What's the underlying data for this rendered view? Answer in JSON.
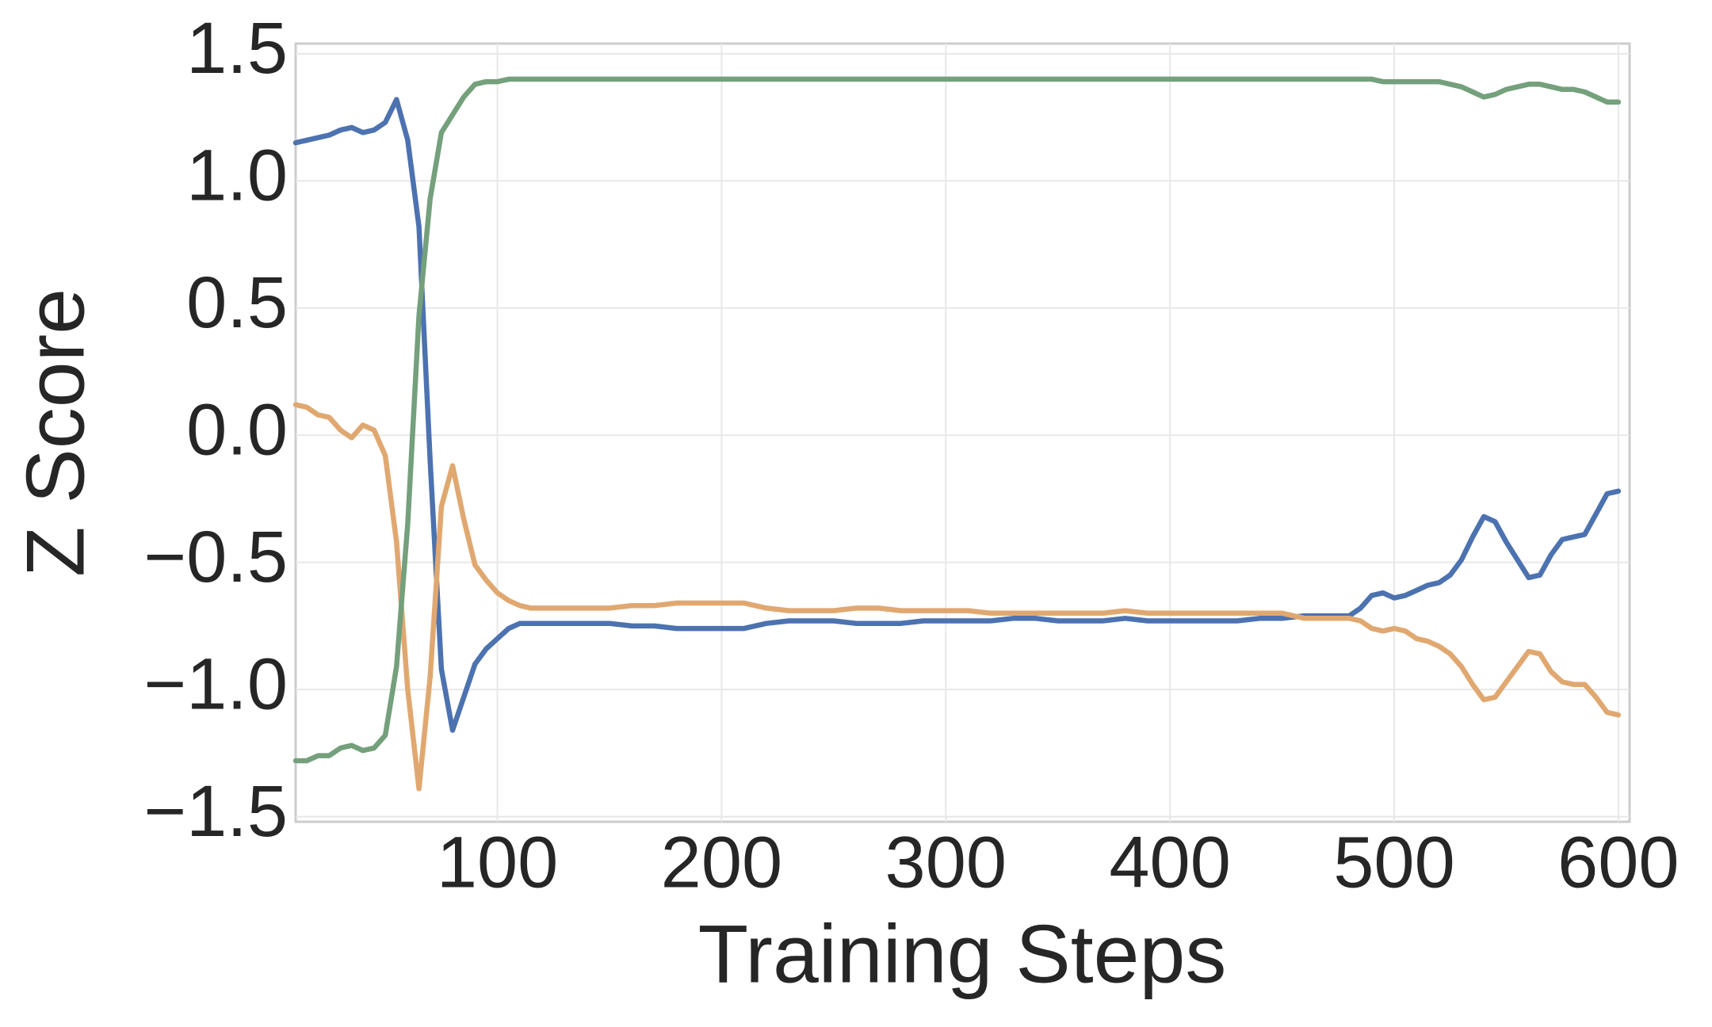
{
  "chart_data": {
    "type": "line",
    "xlabel": "Training Steps",
    "ylabel": "Z Score",
    "x": [
      10,
      15,
      20,
      25,
      30,
      35,
      40,
      45,
      50,
      55,
      60,
      65,
      70,
      75,
      80,
      85,
      90,
      95,
      100,
      105,
      110,
      115,
      120,
      130,
      140,
      150,
      160,
      170,
      180,
      190,
      200,
      210,
      220,
      230,
      240,
      250,
      260,
      270,
      280,
      290,
      300,
      310,
      320,
      330,
      340,
      350,
      360,
      370,
      380,
      390,
      400,
      410,
      420,
      430,
      440,
      450,
      460,
      470,
      480,
      485,
      490,
      495,
      500,
      505,
      510,
      515,
      520,
      525,
      530,
      535,
      540,
      545,
      550,
      555,
      560,
      565,
      570,
      575,
      580,
      585,
      590,
      595,
      600
    ],
    "series": [
      {
        "color": "#4c72b0",
        "values": [
          1.15,
          1.16,
          1.17,
          1.18,
          1.2,
          1.21,
          1.19,
          1.2,
          1.23,
          1.32,
          1.16,
          0.82,
          -0.1,
          -0.92,
          -1.16,
          -1.03,
          -0.9,
          -0.84,
          -0.8,
          -0.76,
          -0.74,
          -0.74,
          -0.74,
          -0.74,
          -0.74,
          -0.74,
          -0.75,
          -0.75,
          -0.76,
          -0.76,
          -0.76,
          -0.76,
          -0.74,
          -0.73,
          -0.73,
          -0.73,
          -0.74,
          -0.74,
          -0.74,
          -0.73,
          -0.73,
          -0.73,
          -0.73,
          -0.72,
          -0.72,
          -0.73,
          -0.73,
          -0.73,
          -0.72,
          -0.73,
          -0.73,
          -0.73,
          -0.73,
          -0.73,
          -0.72,
          -0.72,
          -0.71,
          -0.71,
          -0.71,
          -0.68,
          -0.63,
          -0.62,
          -0.64,
          -0.63,
          -0.61,
          -0.59,
          -0.58,
          -0.55,
          -0.49,
          -0.4,
          -0.32,
          -0.34,
          -0.42,
          -0.49,
          -0.56,
          -0.55,
          -0.47,
          -0.41,
          -0.4,
          -0.39,
          -0.31,
          -0.23,
          -0.22
        ]
      },
      {
        "color": "#e0a870",
        "values": [
          0.12,
          0.11,
          0.08,
          0.07,
          0.02,
          -0.01,
          0.04,
          0.02,
          -0.08,
          -0.42,
          -1.0,
          -1.39,
          -0.95,
          -0.28,
          -0.12,
          -0.33,
          -0.51,
          -0.57,
          -0.62,
          -0.65,
          -0.67,
          -0.68,
          -0.68,
          -0.68,
          -0.68,
          -0.68,
          -0.67,
          -0.67,
          -0.66,
          -0.66,
          -0.66,
          -0.66,
          -0.68,
          -0.69,
          -0.69,
          -0.69,
          -0.68,
          -0.68,
          -0.69,
          -0.69,
          -0.69,
          -0.69,
          -0.7,
          -0.7,
          -0.7,
          -0.7,
          -0.7,
          -0.7,
          -0.69,
          -0.7,
          -0.7,
          -0.7,
          -0.7,
          -0.7,
          -0.7,
          -0.7,
          -0.72,
          -0.72,
          -0.72,
          -0.73,
          -0.76,
          -0.77,
          -0.76,
          -0.77,
          -0.8,
          -0.81,
          -0.83,
          -0.86,
          -0.91,
          -0.98,
          -1.04,
          -1.03,
          -0.97,
          -0.91,
          -0.85,
          -0.86,
          -0.93,
          -0.97,
          -0.98,
          -0.98,
          -1.03,
          -1.09,
          -1.1
        ]
      },
      {
        "color": "#74a07c",
        "values": [
          -1.28,
          -1.28,
          -1.26,
          -1.26,
          -1.23,
          -1.22,
          -1.24,
          -1.23,
          -1.18,
          -0.91,
          -0.35,
          0.47,
          0.93,
          1.19,
          1.26,
          1.33,
          1.38,
          1.39,
          1.39,
          1.4,
          1.4,
          1.4,
          1.4,
          1.4,
          1.4,
          1.4,
          1.4,
          1.4,
          1.4,
          1.4,
          1.4,
          1.4,
          1.4,
          1.4,
          1.4,
          1.4,
          1.4,
          1.4,
          1.4,
          1.4,
          1.4,
          1.4,
          1.4,
          1.4,
          1.4,
          1.4,
          1.4,
          1.4,
          1.4,
          1.4,
          1.4,
          1.4,
          1.4,
          1.4,
          1.4,
          1.4,
          1.4,
          1.4,
          1.4,
          1.4,
          1.4,
          1.39,
          1.39,
          1.39,
          1.39,
          1.39,
          1.39,
          1.38,
          1.37,
          1.35,
          1.33,
          1.34,
          1.36,
          1.37,
          1.38,
          1.38,
          1.37,
          1.36,
          1.36,
          1.35,
          1.33,
          1.31,
          1.31
        ]
      }
    ],
    "xlim": [
      10,
      605
    ],
    "ylim": [
      -1.52,
      1.54
    ],
    "xticks": [
      100,
      200,
      300,
      400,
      500,
      600
    ],
    "yticks": [
      {
        "value": -1.5,
        "label": "−1.5"
      },
      {
        "value": -1,
        "label": "−1.0"
      },
      {
        "value": -0.5,
        "label": "−0.5"
      },
      {
        "value": 0,
        "label": "0.0"
      },
      0.5,
      {
        "value": 1,
        "label": "1.0"
      },
      1.5
    ],
    "grid": true
  }
}
